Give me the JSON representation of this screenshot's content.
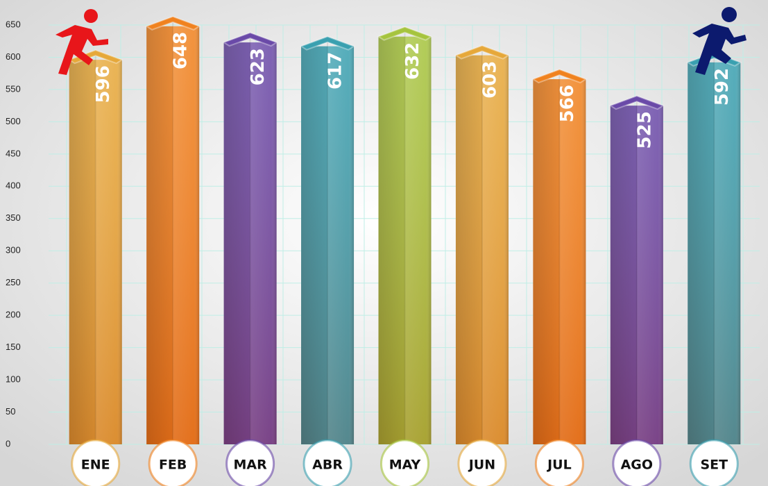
{
  "chart_data": {
    "type": "bar",
    "categories": [
      "ENE",
      "FEB",
      "MAR",
      "ABR",
      "MAY",
      "JUN",
      "JUL",
      "AGO",
      "SET"
    ],
    "values": [
      596,
      648,
      623,
      617,
      632,
      603,
      566,
      525,
      592
    ],
    "colors": [
      "#e6a83a",
      "#f0821f",
      "#6a4aa8",
      "#3aa0b0",
      "#a6c43e",
      "#e6a83a",
      "#f0821f",
      "#6a4aa8",
      "#3aa0b0"
    ],
    "ylim": [
      0,
      650
    ],
    "yticks": [
      0,
      50,
      100,
      150,
      200,
      250,
      300,
      350,
      400,
      450,
      500,
      550,
      600,
      650
    ],
    "grid": true
  }
}
